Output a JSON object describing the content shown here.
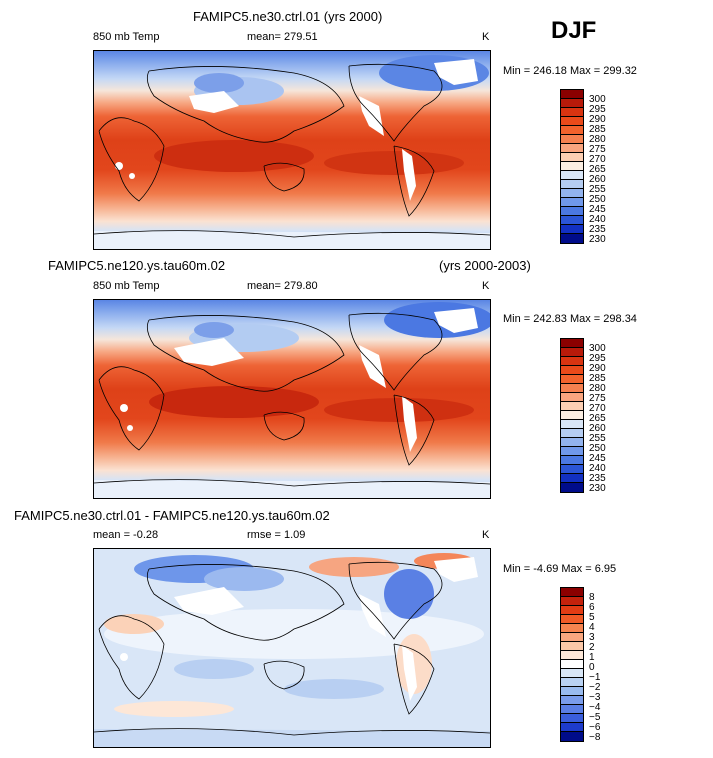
{
  "season": "DJF",
  "panels": [
    {
      "title": "FAMIPC5.ne30.ctrl.01 (yrs 2000)",
      "subtitle_left": "",
      "variable": "850 mb Temp",
      "mean_label": "mean= 279.51",
      "units": "K",
      "minmax": "Min = 246.18 Max = 299.32",
      "colorbar_labels": [
        "300",
        "295",
        "290",
        "285",
        "280",
        "275",
        "270",
        "265",
        "260",
        "255",
        "250",
        "245",
        "240",
        "235",
        "230"
      ],
      "colorbar_colors": [
        "#8b0000",
        "#b81a0a",
        "#d93411",
        "#ea4a1a",
        "#f2622c",
        "#f5804f",
        "#f9a57f",
        "#fccfb3",
        "#fbeee2",
        "#d9e6f7",
        "#b5cdf2",
        "#92b3ee",
        "#7098ea",
        "#4b78e2",
        "#2b55d6",
        "#1230c2",
        "#000c8a"
      ]
    },
    {
      "title": "FAMIPC5.ne120.ys.tau60m.02",
      "subtitle_right": "(yrs 2000-2003)",
      "variable": "850 mb Temp",
      "mean_label": "mean= 279.80",
      "units": "K",
      "minmax": "Min = 242.83 Max = 298.34",
      "colorbar_labels": [
        "300",
        "295",
        "290",
        "285",
        "280",
        "275",
        "270",
        "265",
        "260",
        "255",
        "250",
        "245",
        "240",
        "235",
        "230"
      ],
      "colorbar_colors": [
        "#8b0000",
        "#b81a0a",
        "#d93411",
        "#ea4a1a",
        "#f2622c",
        "#f5804f",
        "#f9a57f",
        "#fccfb3",
        "#fbeee2",
        "#d9e6f7",
        "#b5cdf2",
        "#92b3ee",
        "#7098ea",
        "#4b78e2",
        "#2b55d6",
        "#1230c2",
        "#000c8a"
      ]
    },
    {
      "title": "FAMIPC5.ne30.ctrl.01 - FAMIPC5.ne120.ys.tau60m.02",
      "mean_label": "mean =    -0.28",
      "rmse_label": "rmse =     1.09",
      "units": "K",
      "minmax": "Min =   -4.69 Max =     6.95",
      "colorbar_labels": [
        "8",
        "6",
        "5",
        "4",
        "3",
        "2",
        "1",
        "0",
        "−1",
        "−2",
        "−3",
        "−4",
        "−5",
        "−6",
        "−8"
      ],
      "colorbar_colors": [
        "#8b0000",
        "#c4220c",
        "#e23c14",
        "#f05a26",
        "#f6844f",
        "#f9a77f",
        "#fbc8a8",
        "#fde7d7",
        "#ffffff",
        "#d9e7f7",
        "#b9d2f3",
        "#99bbef",
        "#7a9ceb",
        "#5a7ee5",
        "#3a5edc",
        "#1d3bcc",
        "#000c8a"
      ]
    }
  ]
}
